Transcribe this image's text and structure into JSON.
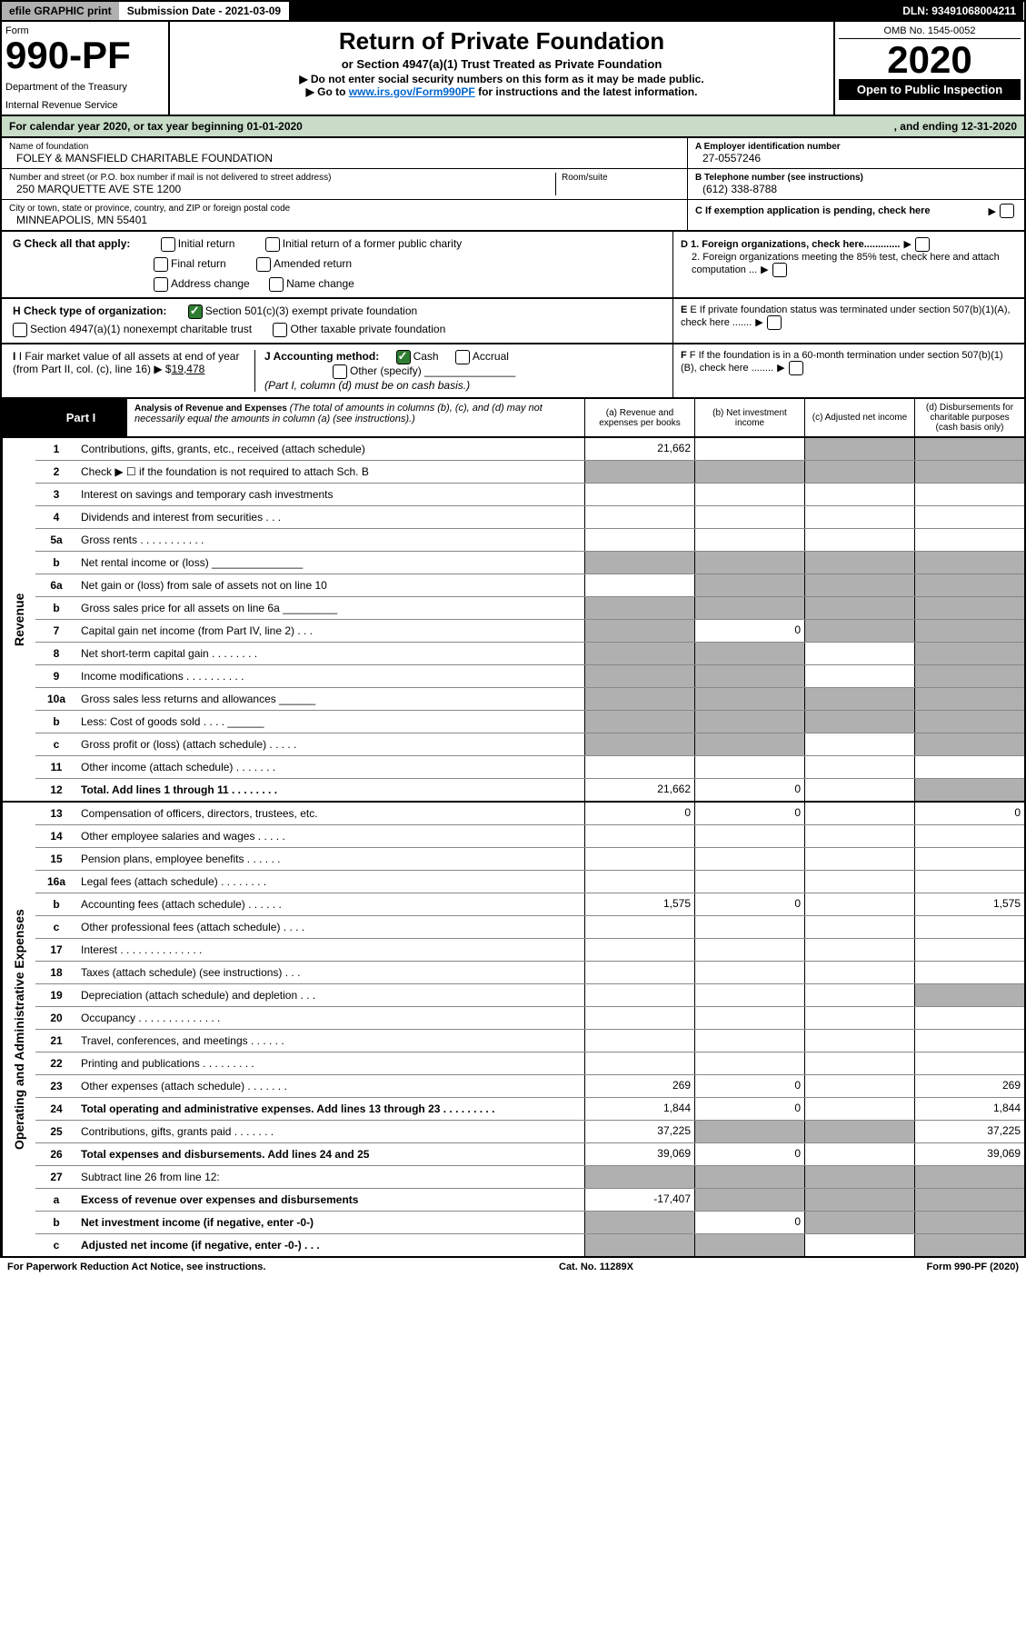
{
  "topbar": {
    "efile": "efile GRAPHIC print",
    "subdate_label": "Submission Date - ",
    "subdate": "2021-03-09",
    "dln_label": "DLN: ",
    "dln": "93491068004211"
  },
  "header": {
    "form_label": "Form",
    "form_no": "990-PF",
    "dept": "Department of the Treasury",
    "irs": "Internal Revenue Service",
    "title": "Return of Private Foundation",
    "subtitle": "or Section 4947(a)(1) Trust Treated as Private Foundation",
    "instruct1": "▶ Do not enter social security numbers on this form as it may be made public.",
    "instruct2_pre": "▶ Go to ",
    "instruct2_link": "www.irs.gov/Form990PF",
    "instruct2_post": " for instructions and the latest information.",
    "omb": "OMB No. 1545-0052",
    "year": "2020",
    "inspect": "Open to Public Inspection"
  },
  "calyr": {
    "pre": "For calendar year 2020, or tax year beginning ",
    "begin": "01-01-2020",
    "mid": ", and ending ",
    "end": "12-31-2020"
  },
  "id": {
    "name_label": "Name of foundation",
    "name": "FOLEY & MANSFIELD CHARITABLE FOUNDATION",
    "addr_label": "Number and street (or P.O. box number if mail is not delivered to street address)",
    "room_label": "Room/suite",
    "addr": "250 MARQUETTE AVE STE 1200",
    "city_label": "City or town, state or province, country, and ZIP or foreign postal code",
    "city": "MINNEAPOLIS, MN  55401",
    "ein_label": "A Employer identification number",
    "ein": "27-0557246",
    "tel_label": "B Telephone number (see instructions)",
    "tel": "(612) 338-8788",
    "c_label": "C If exemption application is pending, check here"
  },
  "checks": {
    "g_label": "G Check all that apply:",
    "g1": "Initial return",
    "g2": "Initial return of a former public charity",
    "g3": "Final return",
    "g4": "Amended return",
    "g5": "Address change",
    "g6": "Name change",
    "h_label": "H Check type of organization:",
    "h1": "Section 501(c)(3) exempt private foundation",
    "h2": "Section 4947(a)(1) nonexempt charitable trust",
    "h3": "Other taxable private foundation",
    "i_label": "I Fair market value of all assets at end of year (from Part II, col. (c), line 16) ▶ $",
    "i_val": "19,478",
    "j_label": "J Accounting method:",
    "j1": "Cash",
    "j2": "Accrual",
    "j3": "Other (specify)",
    "j_note": "(Part I, column (d) must be on cash basis.)",
    "d1": "D 1. Foreign organizations, check here.............",
    "d2": "2. Foreign organizations meeting the 85% test, check here and attach computation ...",
    "e": "E If private foundation status was terminated under section 507(b)(1)(A), check here .......",
    "f": "F If the foundation is in a 60-month termination under section 507(b)(1)(B), check here ........"
  },
  "part1": {
    "label": "Part I",
    "title": "Analysis of Revenue and Expenses ",
    "note": "(The total of amounts in columns (b), (c), and (d) may not necessarily equal the amounts in column (a) (see instructions).)",
    "cols": {
      "a": "(a)   Revenue and expenses per books",
      "b": "(b)  Net investment income",
      "c": "(c)  Adjusted net income",
      "d": "(d)  Disbursements for charitable purposes (cash basis only)"
    }
  },
  "revenue_label": "Revenue",
  "expenses_label": "Operating and Administrative Expenses",
  "rows": [
    {
      "n": "1",
      "d": "Contributions, gifts, grants, etc., received (attach schedule)",
      "a": "21,662",
      "cg": true,
      "dg": true
    },
    {
      "n": "2",
      "d": "Check ▶ ☐ if the foundation is not required to attach Sch. B",
      "ag": true,
      "bg": true,
      "cg": true,
      "dg": true,
      "bold_not": true
    },
    {
      "n": "3",
      "d": "Interest on savings and temporary cash investments",
      "cg": false
    },
    {
      "n": "4",
      "d": "Dividends and interest from securities   .   .   .",
      "cg": false
    },
    {
      "n": "5a",
      "d": "Gross rents    .   .   .   .   .   .   .   .   .   .   .",
      "cg": false
    },
    {
      "n": "b",
      "d": "Net rental income or (loss)    _______________",
      "ag": true,
      "bg": true,
      "cg": true,
      "dg": true
    },
    {
      "n": "6a",
      "d": "Net gain or (loss) from sale of assets not on line 10",
      "bg": true,
      "cg": true,
      "dg": true
    },
    {
      "n": "b",
      "d": "Gross sales price for all assets on line 6a  _________",
      "ag": true,
      "bg": true,
      "cg": true,
      "dg": true
    },
    {
      "n": "7",
      "d": "Capital gain net income (from Part IV, line 2)    .   .   .",
      "ag": true,
      "b": "0",
      "cg": true,
      "dg": true
    },
    {
      "n": "8",
      "d": "Net short-term capital gain   .   .   .   .   .   .   .   .",
      "ag": true,
      "bg": true,
      "dg": true
    },
    {
      "n": "9",
      "d": "Income modifications  .   .   .   .   .   .   .   .   .   .",
      "ag": true,
      "bg": true,
      "dg": true
    },
    {
      "n": "10a",
      "d": "Gross sales less returns and allowances  ______",
      "ag": true,
      "bg": true,
      "cg": true,
      "dg": true
    },
    {
      "n": "b",
      "d": "Less: Cost of goods sold    .   .   .   .   ______",
      "ag": true,
      "bg": true,
      "cg": true,
      "dg": true
    },
    {
      "n": "c",
      "d": "Gross profit or (loss) (attach schedule)   .   .   .   .   .",
      "ag": true,
      "bg": true,
      "dg": true
    },
    {
      "n": "11",
      "d": "Other income (attach schedule)    .   .   .   .   .   .   ."
    },
    {
      "n": "12",
      "d": "Total. Add lines 1 through 11   .   .   .   .   .   .   .   .",
      "bold": true,
      "a": "21,662",
      "b": "0",
      "dg": true
    }
  ],
  "exp_rows": [
    {
      "n": "13",
      "d": "Compensation of officers, directors, trustees, etc.",
      "a": "0",
      "b": "0",
      "dd": "0"
    },
    {
      "n": "14",
      "d": "Other employee salaries and wages   .   .   .   .   ."
    },
    {
      "n": "15",
      "d": "Pension plans, employee benefits   .   .   .   .   .   ."
    },
    {
      "n": "16a",
      "d": "Legal fees (attach schedule)  .   .   .   .   .   .   .   ."
    },
    {
      "n": "b",
      "d": "Accounting fees (attach schedule)   .   .   .   .   .   .",
      "a": "1,575",
      "b": "0",
      "dd": "1,575"
    },
    {
      "n": "c",
      "d": "Other professional fees (attach schedule)    .   .   .   ."
    },
    {
      "n": "17",
      "d": "Interest   .   .   .   .   .   .   .   .   .   .   .   .   .   ."
    },
    {
      "n": "18",
      "d": "Taxes (attach schedule) (see instructions)    .   .   ."
    },
    {
      "n": "19",
      "d": "Depreciation (attach schedule) and depletion    .   .   .",
      "dg": true
    },
    {
      "n": "20",
      "d": "Occupancy  .   .   .   .   .   .   .   .   .   .   .   .   .   ."
    },
    {
      "n": "21",
      "d": "Travel, conferences, and meetings  .   .   .   .   .   ."
    },
    {
      "n": "22",
      "d": "Printing and publications  .   .   .   .   .   .   .   .   ."
    },
    {
      "n": "23",
      "d": "Other expenses (attach schedule)   .   .   .   .   .   .   .",
      "a": "269",
      "b": "0",
      "dd": "269"
    },
    {
      "n": "24",
      "d": "Total operating and administrative expenses. Add lines 13 through 23   .   .   .   .   .   .   .   .   .",
      "bold": true,
      "a": "1,844",
      "b": "0",
      "dd": "1,844"
    },
    {
      "n": "25",
      "d": "Contributions, gifts, grants paid    .   .   .   .   .   .   .",
      "a": "37,225",
      "bg": true,
      "cg": true,
      "dd": "37,225"
    },
    {
      "n": "26",
      "d": "Total expenses and disbursements. Add lines 24 and 25",
      "bold": true,
      "a": "39,069",
      "b": "0",
      "dd": "39,069"
    },
    {
      "n": "27",
      "d": "Subtract line 26 from line 12:",
      "ag": true,
      "bg": true,
      "cg": true,
      "dg": true
    },
    {
      "n": "a",
      "d": "Excess of revenue over expenses and disbursements",
      "bold": true,
      "a": "-17,407",
      "bg": true,
      "cg": true,
      "dg": true
    },
    {
      "n": "b",
      "d": "Net investment income (if negative, enter -0-)",
      "bold": true,
      "ag": true,
      "b": "0",
      "cg": true,
      "dg": true
    },
    {
      "n": "c",
      "d": "Adjusted net income (if negative, enter -0-)   .   .   .",
      "bold": true,
      "ag": true,
      "bg": true,
      "dg": true
    }
  ],
  "footer": {
    "left": "For Paperwork Reduction Act Notice, see instructions.",
    "mid": "Cat. No. 11289X",
    "right": "Form 990-PF (2020)"
  }
}
